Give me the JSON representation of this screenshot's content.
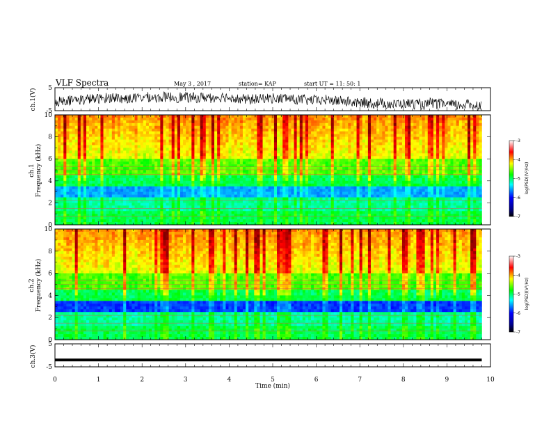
{
  "header": {
    "title": "VLF Spectra",
    "date": "May 3 , 2017",
    "station": "station= KAP",
    "start": "start UT = 11: 50: 1"
  },
  "chart_data": [
    {
      "type": "line",
      "title": "",
      "ylabel": "ch.1(V)",
      "ylim": [
        -5,
        5
      ],
      "yticks": [
        "5",
        "-5"
      ],
      "xlim": [
        0,
        10
      ],
      "note_level": "noisy waveform around -1 V"
    },
    {
      "type": "heatmap",
      "ylabel": "ch.1\nFrequency (kHz)",
      "ylabel_lines": [
        "ch.1",
        "Frequency (kHz)"
      ],
      "ylim": [
        0,
        10
      ],
      "yticks": [
        "0",
        "2",
        "4",
        "6",
        "8",
        "10"
      ],
      "xlim": [
        0,
        10
      ],
      "data_extent_min": 9.8,
      "colorbar": {
        "label": "log(PSD)(V²/Hz)",
        "ticks": [
          "-3",
          "-4",
          "-5",
          "-6",
          "-7"
        ],
        "range": [
          -7,
          -3
        ]
      }
    },
    {
      "type": "heatmap",
      "ylabel": "ch.2\nFrequency (kHz)",
      "ylabel_lines": [
        "ch.2",
        "Frequency (kHz)"
      ],
      "ylim": [
        0,
        10
      ],
      "yticks": [
        "0",
        "2",
        "4",
        "6",
        "8",
        "10"
      ],
      "xlim": [
        0,
        10
      ],
      "data_extent_min": 9.8,
      "colorbar": {
        "label": "log(PSD)(V²/Hz)",
        "ticks": [
          "-3",
          "-4",
          "-5",
          "-6",
          "-7"
        ],
        "range": [
          -7,
          -3
        ]
      }
    },
    {
      "type": "line",
      "ylabel": "ch.3(V)",
      "ylim": [
        -5,
        5
      ],
      "yticks": [
        "5",
        "-5"
      ],
      "xlim": [
        0,
        10
      ],
      "xlabel": "Time (min)",
      "xticks": [
        "0",
        "1",
        "2",
        "3",
        "4",
        "5",
        "6",
        "7",
        "8",
        "9",
        "10"
      ],
      "series": [
        {
          "x": [
            0,
            9.8
          ],
          "y": [
            -2,
            -2
          ]
        }
      ]
    }
  ],
  "colors": {
    "jet": [
      "#00008f",
      "#0000ff",
      "#00ffff",
      "#00ff00",
      "#ffff00",
      "#ff0000",
      "#800000"
    ]
  }
}
